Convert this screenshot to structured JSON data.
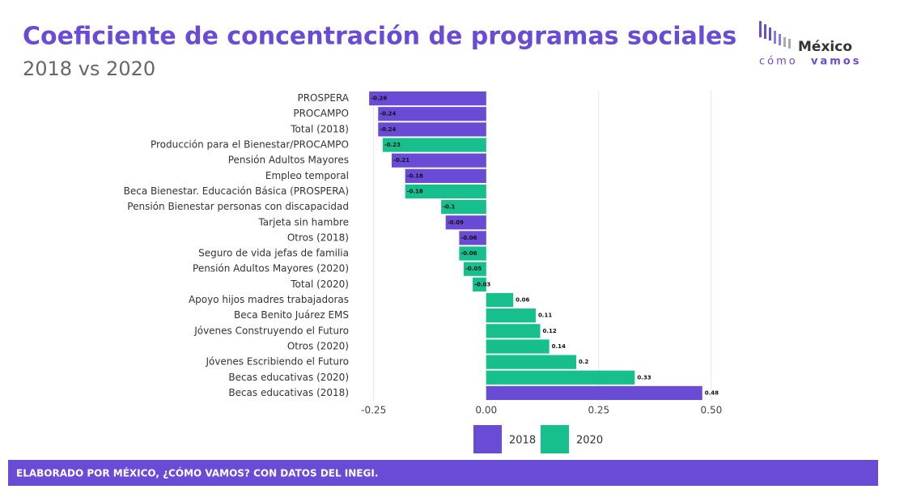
{
  "chart_data": {
    "type": "bar",
    "orientation": "horizontal",
    "title": "Coeficiente de concentración de programas sociales",
    "subtitle": "2018 vs 2020",
    "categories": [
      "PROSPERA",
      "PROCAMPO",
      "Total (2018)",
      "Producción para el Bienestar/PROCAMPO",
      "Pensión Adultos Mayores",
      "Empleo temporal",
      "Beca Bienestar. Educación Básica (PROSPERA)",
      "Pensión Bienestar personas con discapacidad",
      "Tarjeta sin hambre",
      "Otros (2018)",
      "Seguro de vida jefas de familia",
      "Pensión Adultos Mayores (2020)",
      "Total (2020)",
      "Apoyo hijos madres trabajadoras",
      "Beca Benito Juárez EMS",
      "Jóvenes Construyendo el Futuro",
      "Otros (2020)",
      "Jóvenes Escribiendo el Futuro",
      "Becas educativas (2020)",
      "Becas educativas (2018)"
    ],
    "series": [
      {
        "name": "2018",
        "color": "#6a4bd6",
        "values": [
          -0.26,
          -0.24,
          -0.24,
          null,
          -0.21,
          -0.18,
          null,
          null,
          -0.09,
          -0.06,
          null,
          null,
          null,
          null,
          null,
          null,
          null,
          null,
          null,
          0.48
        ]
      },
      {
        "name": "2020",
        "color": "#17bf8c",
        "values": [
          null,
          null,
          null,
          -0.23,
          null,
          null,
          -0.18,
          -0.1,
          null,
          null,
          -0.06,
          -0.05,
          -0.03,
          0.06,
          0.11,
          0.12,
          0.14,
          0.2,
          0.33,
          null
        ]
      }
    ],
    "xlim": [
      -0.28,
      0.52
    ],
    "xticks": [
      -0.25,
      {
        "value": 0,
        "label": "0.00"
      },
      0.25,
      {
        "value": 0.5,
        "label": "0.50"
      }
    ],
    "grid": true,
    "legend": "bottom",
    "source": "ELABORADO POR MÉXICO, ¿CÓMO VAMOS? CON DATOS DEL INEGI.",
    "logo": {
      "top": "México",
      "bottom_a": "cómo",
      "bottom_b": "vamos"
    }
  }
}
